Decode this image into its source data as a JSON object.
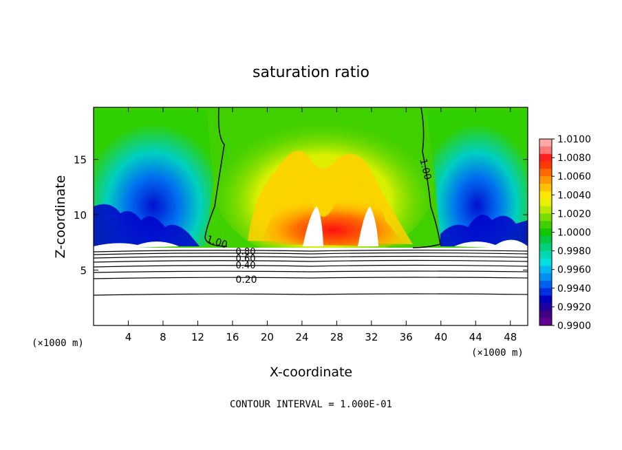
{
  "chart_data": {
    "type": "heatmap",
    "title": "saturation ratio",
    "xlabel": "X-coordinate",
    "ylabel": "Z-coordinate",
    "x_unit": "(×1000 m)",
    "x_unit_right": "(×1000 m)",
    "xlim": [
      0,
      50
    ],
    "ylim": [
      0,
      19.7
    ],
    "xticks": [
      4,
      8,
      12,
      16,
      20,
      24,
      28,
      32,
      36,
      40,
      44,
      48
    ],
    "yticks": [
      5,
      10,
      15
    ],
    "colorbar": {
      "levels": [
        "1.0100",
        "1.0080",
        "1.0060",
        "1.0040",
        "1.0020",
        "1.0000",
        "0.9980",
        "0.9960",
        "0.9940",
        "0.9920",
        "0.9900"
      ],
      "colors": [
        "#ffa8a8",
        "#ff7878",
        "#ff2020",
        "#ff3a00",
        "#ff6a00",
        "#ff9800",
        "#ffc000",
        "#ffe600",
        "#e8f000",
        "#b8e800",
        "#78dc00",
        "#40d000",
        "#10c800",
        "#00c840",
        "#00d078",
        "#00d8b0",
        "#00e0e0",
        "#00b8f0",
        "#0090f0",
        "#0060f0",
        "#0030e0",
        "#0000c0",
        "#2000a0",
        "#400080",
        "#600090"
      ]
    },
    "contours": [
      {
        "label": "1.00",
        "level": 1.0
      },
      {
        "label": "0.80",
        "level": 0.8
      },
      {
        "label": "0.60",
        "level": 0.6
      },
      {
        "label": "0.40",
        "level": 0.4
      },
      {
        "label": "0.20",
        "level": 0.2
      }
    ],
    "footer": "CONTOUR INTERVAL = 1.000E-01"
  }
}
